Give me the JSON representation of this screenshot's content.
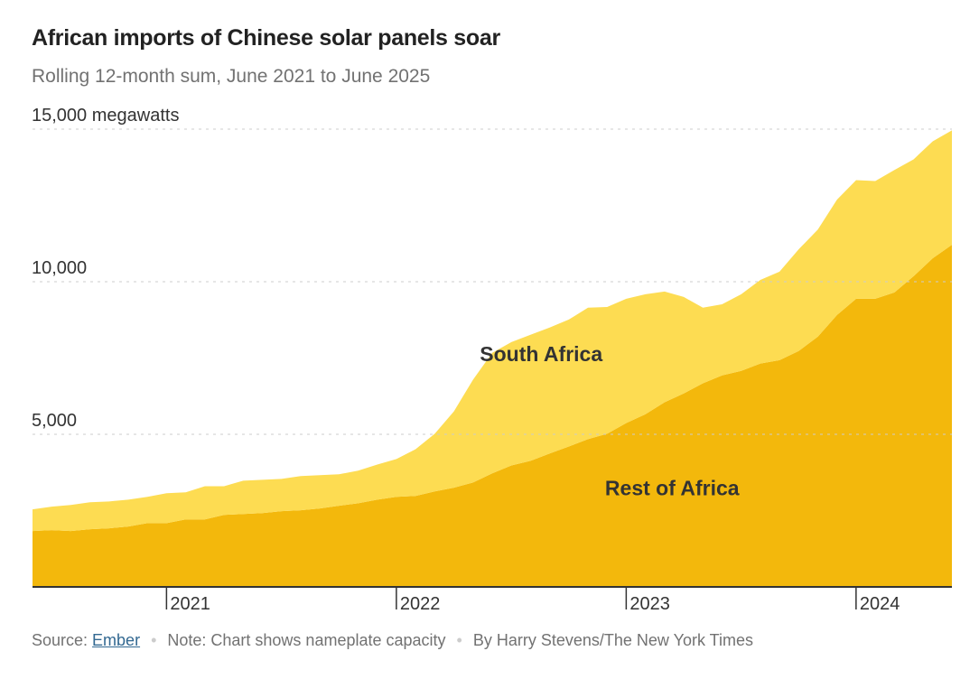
{
  "chart_data": {
    "type": "area",
    "stacked": true,
    "title": "African imports of Chinese solar panels soar",
    "subtitle": "Rolling 12-month sum, June 2021 to June 2025",
    "ylabel_unit": "megawatts",
    "ylim": [
      0,
      15000
    ],
    "yticks": [
      {
        "value": 5000,
        "label": "5,000"
      },
      {
        "value": 10000,
        "label": "10,000"
      },
      {
        "value": 15000,
        "label": "15,000 megawatts"
      }
    ],
    "xlim": [
      2020.417,
      2024.417
    ],
    "xticks": [
      {
        "value": 2021,
        "label": "2021"
      },
      {
        "value": 2022,
        "label": "2022"
      },
      {
        "value": 2023,
        "label": "2023"
      },
      {
        "value": 2024,
        "label": "2024"
      }
    ],
    "x_start": 2020.417,
    "x_step_months": 1,
    "grid": true,
    "series": [
      {
        "name": "Rest of Africa",
        "color": "#f3b80c",
        "label_x": 2023.2,
        "label_y": 3000,
        "values": [
          1830,
          1860,
          1830,
          1890,
          1920,
          1980,
          2090,
          2090,
          2210,
          2210,
          2360,
          2390,
          2420,
          2480,
          2510,
          2570,
          2660,
          2740,
          2860,
          2950,
          2980,
          3130,
          3250,
          3420,
          3720,
          3980,
          4130,
          4370,
          4600,
          4840,
          5020,
          5370,
          5660,
          6050,
          6340,
          6670,
          6930,
          7080,
          7320,
          7430,
          7730,
          8200,
          8910,
          9440,
          9440,
          9650,
          10180,
          10770,
          11210
        ]
      },
      {
        "name": "South Africa",
        "color": "#fddc52",
        "label_x": 2022.63,
        "label_y": 7400,
        "values": [
          710,
          770,
          855,
          883,
          880,
          880,
          860,
          980,
          890,
          1090,
          940,
          1090,
          1090,
          1060,
          1120,
          1090,
          1030,
          1070,
          1150,
          1240,
          1530,
          1890,
          2500,
          3370,
          3950,
          4040,
          4130,
          4130,
          4160,
          4310,
          4150,
          4070,
          3930,
          3630,
          3160,
          2480,
          2330,
          2510,
          2740,
          2900,
          3330,
          3510,
          3780,
          3890,
          3860,
          4010,
          3830,
          3830,
          3750
        ]
      }
    ]
  },
  "footer": {
    "source_prefix": "Source: ",
    "source_link": "Ember",
    "note": "Note: Chart shows nameplate capacity",
    "byline": "By Harry Stevens/The New York Times",
    "separator": "•"
  }
}
